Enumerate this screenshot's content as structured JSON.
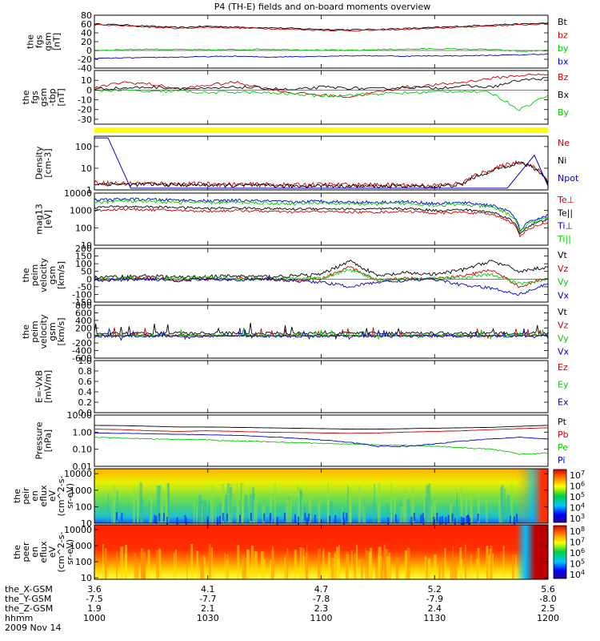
{
  "chart_data": {
    "type": "line",
    "title": "P4 (TH-E) fields and on-board moments overview",
    "x_ticks": [
      "1000",
      "1030",
      "1100",
      "1130",
      "1200"
    ],
    "panels": [
      {
        "id": "fgs_gsm",
        "ylabel": [
          "the",
          "fgs",
          "gsm",
          "[nT]"
        ],
        "ylim": [
          -40,
          80
        ],
        "log": false,
        "yticks": [
          "80",
          "60",
          "40",
          "20",
          "0",
          "-20",
          "-40"
        ],
        "series": [
          {
            "name": "Bt",
            "color": "#000000",
            "style": "smooth",
            "amp": 3,
            "values": [
              60,
              58,
              55,
              52,
              55,
              53,
              52,
              50,
              48,
              47,
              48,
              50,
              52,
              55,
              58,
              60,
              62
            ]
          },
          {
            "name": "bz",
            "color": "#cc0000",
            "style": "smooth",
            "amp": 3,
            "values": [
              58,
              56,
              53,
              50,
              53,
              51,
              50,
              48,
              46,
              45,
              46,
              48,
              50,
              53,
              56,
              58,
              60
            ]
          },
          {
            "name": "by",
            "color": "#00cc00",
            "style": "smooth",
            "amp": 3,
            "values": [
              0,
              2,
              3,
              2,
              1,
              2,
              3,
              2,
              1,
              0,
              2,
              3,
              4,
              3,
              2,
              -2,
              0
            ]
          },
          {
            "name": "bx",
            "color": "#0000cc",
            "style": "smooth",
            "amp": 2,
            "values": [
              -18,
              -17,
              -16,
              -15,
              -14,
              -13,
              -15,
              -14,
              -13,
              -12,
              -12,
              -13,
              -12,
              -12,
              -11,
              -10,
              -8
            ]
          }
        ]
      },
      {
        "id": "fgs_gsm_dtrend",
        "ylabel": [
          "the",
          "fgs",
          "gsm",
          "-tbp",
          "[nT]"
        ],
        "ylim": [
          -35,
          20
        ],
        "log": false,
        "yticks": [
          "10",
          "0",
          "-10",
          "-20",
          "-30"
        ],
        "series": [
          {
            "name": "Bz",
            "color": "#cc0000",
            "style": "smooth",
            "amp": 3,
            "values": [
              2,
              8,
              6,
              1,
              5,
              8,
              2,
              -3,
              -5,
              -7,
              -2,
              3,
              5,
              8,
              12,
              15,
              16
            ]
          },
          {
            "name": "Bx",
            "color": "#000000",
            "style": "smooth",
            "amp": 3,
            "values": [
              1,
              2,
              3,
              2,
              1,
              3,
              2,
              0,
              3,
              2,
              1,
              3,
              2,
              4,
              3,
              10,
              12
            ]
          },
          {
            "name": "By",
            "color": "#00cc00",
            "style": "smooth",
            "amp": 3,
            "values": [
              -1,
              0,
              -2,
              -1,
              -3,
              -2,
              -3,
              -4,
              -6,
              -5,
              -4,
              -3,
              -2,
              -1,
              -3,
              -20,
              -5
            ]
          }
        ]
      },
      {
        "id": "flag_bar",
        "kind": "bar",
        "color": "#ffff00",
        "series": []
      },
      {
        "id": "density",
        "ylabel": [
          "Density",
          "[cm-3]"
        ],
        "ylim": [
          1,
          300
        ],
        "log": true,
        "yticks": [
          "100",
          "10",
          "1"
        ],
        "series": [
          {
            "name": "Ne",
            "color": "#cc0000",
            "style": "noisy",
            "amp": 0.12,
            "values": [
              2.2,
              2,
              2,
              1.9,
              1.9,
              1.8,
              1.8,
              1.7,
              1.8,
              1.7,
              1.7,
              1.7,
              1.6,
              2,
              8,
              20,
              2
            ]
          },
          {
            "name": "Ni",
            "color": "#000000",
            "style": "noisy",
            "amp": 0.1,
            "values": [
              1.9,
              1.8,
              1.8,
              1.7,
              1.7,
              1.6,
              1.6,
              1.5,
              1.6,
              1.5,
              1.5,
              1.5,
              1.4,
              1.8,
              7,
              18,
              1.8
            ]
          },
          {
            "name": "Npot",
            "color": "#0000cc",
            "style": "lines",
            "points": [
              [
                0,
                250
              ],
              [
                0.03,
                250
              ],
              [
                0.08,
                1.2
              ],
              [
                0.91,
                1.2
              ],
              [
                0.97,
                40
              ],
              [
                1,
                1.5
              ]
            ]
          }
        ]
      },
      {
        "id": "temperature",
        "ylabel": [
          "mag13",
          "[eV]"
        ],
        "ylim": [
          10,
          10000
        ],
        "log": true,
        "yticks": [
          "10000",
          "1000",
          "100",
          "10"
        ],
        "series": [
          {
            "name": "Te⊥",
            "color": "#cc0000",
            "style": "noisy",
            "amp": 0.08,
            "values": [
              1000,
              1200,
              1100,
              1000,
              900,
              1000,
              900,
              800,
              900,
              800,
              800,
              900,
              700,
              800,
              600,
              30,
              200
            ]
          },
          {
            "name": "Te||",
            "color": "#000000",
            "style": "noisy",
            "amp": 0.08,
            "values": [
              1500,
              1700,
              1600,
              1500,
              1300,
              1400,
              1300,
              1200,
              1300,
              1200,
              1200,
              1300,
              1000,
              1100,
              800,
              40,
              300
            ]
          },
          {
            "name": "Ti⊥",
            "color": "#0000cc",
            "style": "noisy",
            "amp": 0.1,
            "values": [
              4000,
              4500,
              4200,
              4000,
              3500,
              3800,
              3500,
              3000,
              3500,
              3000,
              3000,
              3200,
              2500,
              2800,
              2000,
              60,
              500
            ]
          },
          {
            "name": "Ti||",
            "color": "#00cc00",
            "style": "noisy",
            "amp": 0.1,
            "values": [
              3000,
              3500,
              3200,
              3000,
              2800,
              3000,
              2700,
              2400,
              2800,
              2400,
              2400,
              2600,
              2000,
              2200,
              1500,
              50,
              400
            ]
          }
        ]
      },
      {
        "id": "velocity_1",
        "ylabel": [
          "the",
          "peim",
          "velocity",
          "gsm",
          "[km/s]"
        ],
        "ylim": [
          -150,
          200
        ],
        "log": false,
        "yticks": [
          "200",
          "150",
          "100",
          "50",
          "0",
          "-50",
          "-100",
          "-150"
        ],
        "series": [
          {
            "name": "Vt",
            "color": "#000000",
            "style": "noisy",
            "amp": 12,
            "values": [
              10,
              15,
              20,
              10,
              15,
              20,
              15,
              20,
              30,
              120,
              20,
              40,
              30,
              60,
              120,
              50,
              80
            ]
          },
          {
            "name": "Vz",
            "color": "#cc0000",
            "style": "noisy",
            "amp": 10,
            "values": [
              -5,
              0,
              5,
              -5,
              0,
              5,
              0,
              -10,
              0,
              80,
              -10,
              10,
              0,
              20,
              60,
              -50,
              10
            ]
          },
          {
            "name": "Vy",
            "color": "#00cc00",
            "style": "noisy",
            "amp": 10,
            "values": [
              0,
              5,
              0,
              5,
              10,
              0,
              5,
              0,
              5,
              60,
              -5,
              0,
              5,
              10,
              30,
              -30,
              0
            ]
          },
          {
            "name": "Vx",
            "color": "#0000cc",
            "style": "noisy",
            "amp": 10,
            "values": [
              -10,
              -5,
              0,
              -10,
              0,
              -5,
              0,
              -10,
              -20,
              -50,
              -20,
              -10,
              0,
              -40,
              -60,
              -100,
              -30
            ]
          }
        ]
      },
      {
        "id": "velocity_2",
        "ylabel": [
          "the",
          "peim",
          "velocity",
          "gsm",
          "[km/s]"
        ],
        "ylim": [
          -600,
          800
        ],
        "log": false,
        "yticks": [
          "800",
          "600",
          "400",
          "200",
          "0",
          "-200",
          "-400",
          "-600"
        ],
        "series": [
          {
            "name": "Vt",
            "color": "#000000",
            "style": "spiky",
            "amp": 80,
            "values": [
              60,
              60,
              60,
              60,
              60,
              60,
              60,
              60,
              60,
              60,
              60,
              60,
              60,
              60,
              60,
              60,
              60
            ]
          },
          {
            "name": "Vz",
            "color": "#cc0000",
            "style": "spiky",
            "amp": 60,
            "values": [
              0,
              0,
              0,
              0,
              0,
              0,
              0,
              0,
              0,
              0,
              0,
              0,
              0,
              0,
              0,
              0,
              0
            ]
          },
          {
            "name": "Vy",
            "color": "#00cc00",
            "style": "spiky",
            "amp": 50,
            "values": [
              0,
              0,
              0,
              0,
              0,
              0,
              0,
              0,
              0,
              0,
              0,
              0,
              0,
              0,
              0,
              0,
              0
            ]
          },
          {
            "name": "Vx",
            "color": "#0000cc",
            "style": "spiky",
            "amp": 60,
            "values": [
              -20,
              -20,
              -20,
              -20,
              -20,
              -20,
              -20,
              -20,
              -20,
              -20,
              -20,
              -20,
              -20,
              -20,
              -20,
              -20,
              -20
            ]
          }
        ]
      },
      {
        "id": "efield",
        "ylabel": [
          "E=-VxB",
          "[mV/m]"
        ],
        "ylim": [
          0,
          1
        ],
        "log": false,
        "yticks": [
          "1.0",
          "0.8",
          "0.6",
          "0.4",
          "0.2",
          "0.0"
        ],
        "legend": [
          {
            "name": "Ez",
            "color": "#cc0000"
          },
          {
            "name": "Ey",
            "color": "#00cc00"
          },
          {
            "name": "Ex",
            "color": "#0000cc"
          }
        ],
        "series": []
      },
      {
        "id": "pressure",
        "ylabel": [
          "Pressure",
          "[nPa]"
        ],
        "ylim": [
          0.01,
          10
        ],
        "log": true,
        "yticks": [
          "10.00",
          "1.00",
          "0.10",
          "0.01"
        ],
        "series": [
          {
            "name": "Pt",
            "color": "#000000",
            "style": "smooth",
            "amp": 0.02,
            "values": [
              2.5,
              2.4,
              2.2,
              2,
              2,
              1.9,
              1.8,
              1.7,
              1.6,
              1.5,
              1.5,
              1.6,
              1.7,
              1.8,
              1.9,
              2.2,
              2.5
            ]
          },
          {
            "name": "Pb",
            "color": "#cc0000",
            "style": "smooth",
            "amp": 0.02,
            "values": [
              1.5,
              1.4,
              1.2,
              1.1,
              1.2,
              1.1,
              1.0,
              0.95,
              0.9,
              0.85,
              0.9,
              1.0,
              1.1,
              1.2,
              1.4,
              1.6,
              1.8
            ]
          },
          {
            "name": "Pe",
            "color": "#00cc00",
            "style": "noisy",
            "amp": 0.03,
            "values": [
              0.5,
              0.45,
              0.4,
              0.38,
              0.35,
              0.3,
              0.28,
              0.25,
              0.22,
              0.2,
              0.18,
              0.17,
              0.15,
              0.12,
              0.1,
              0.05,
              0.06
            ]
          },
          {
            "name": "Pi",
            "color": "#0000cc",
            "style": "smooth",
            "amp": 0.03,
            "values": [
              0.9,
              0.85,
              0.8,
              0.75,
              0.7,
              0.65,
              0.55,
              0.45,
              0.35,
              0.25,
              0.15,
              0.15,
              0.2,
              0.3,
              0.4,
              0.5,
              0.4
            ]
          }
        ]
      },
      {
        "id": "peir_spec",
        "kind": "spectrogram",
        "ylabel": [
          "the",
          "peir",
          "en",
          "eflux",
          "eV",
          "(cm^2-s-",
          "sr-eV)"
        ],
        "ylim": [
          10,
          20000
        ],
        "log": true,
        "yticks": [
          "10000",
          "1000",
          "100",
          "10"
        ],
        "cbar_ticks": [
          "10^7",
          "10^6",
          "10^5",
          "10^4",
          "10^3"
        ]
      },
      {
        "id": "peer_spec",
        "kind": "spectrogram",
        "ylabel": [
          "the",
          "peer",
          "en",
          "eflux",
          "eV",
          "(cm^2-s-",
          "sr-eV)"
        ],
        "ylim": [
          8,
          20000
        ],
        "log": true,
        "yticks": [
          "10000",
          "1000",
          "100",
          "10"
        ],
        "cbar_ticks": [
          "10^8",
          "10^7",
          "10^6",
          "10^5",
          "10^4"
        ]
      }
    ]
  },
  "footer": {
    "rows": [
      {
        "label": "the_X-GSM",
        "values": [
          "3.6",
          "4.1",
          "4.7",
          "5.2",
          "5.6"
        ]
      },
      {
        "label": "the_Y-GSM",
        "values": [
          "-7.5",
          "-7.7",
          "-7.8",
          "-7.9",
          "-8.0"
        ]
      },
      {
        "label": "the_Z-GSM",
        "values": [
          "1.9",
          "2.1",
          "2.3",
          "2.4",
          "2.5"
        ]
      },
      {
        "label": "hhmm",
        "values": [
          "1000",
          "1030",
          "1100",
          "1130",
          "1200"
        ]
      }
    ],
    "date": "2009 Nov 14"
  }
}
